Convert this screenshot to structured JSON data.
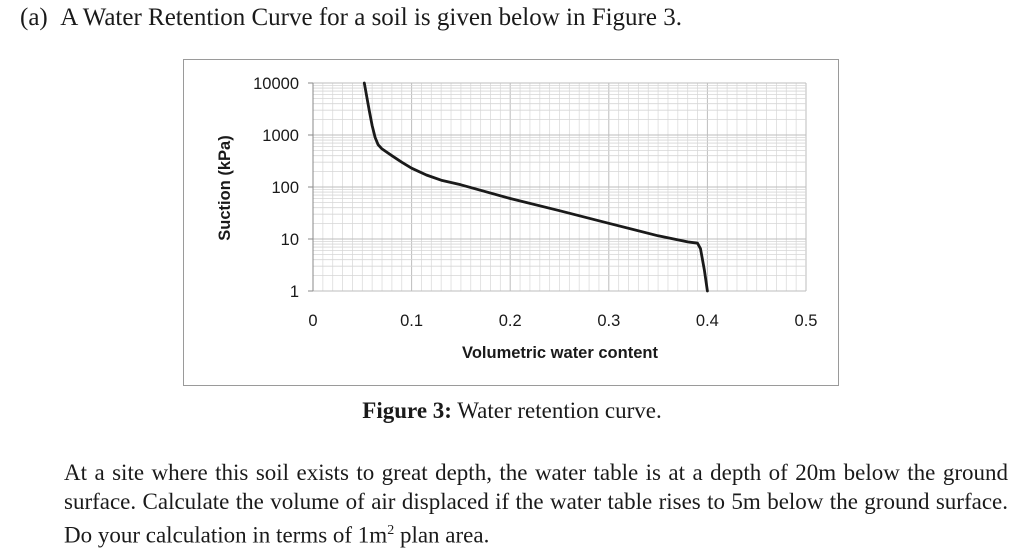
{
  "question": {
    "label": "(a)",
    "heading": "A Water Retention Curve for a soil is given below in Figure 3.",
    "body_before_sup": "At a site where this soil exists to great depth, the water table is at a depth of 20m below the ground surface. Calculate the volume of air displaced if the water table rises to 5m below the ground surface. Do your calculation in terms of 1m",
    "body_sup": "2",
    "body_after_sup": " plan area."
  },
  "figure": {
    "caption_label": "Figure 3:",
    "caption_text": " Water retention curve."
  },
  "chart_data": {
    "type": "line",
    "title": "",
    "xlabel": "Volumetric water content",
    "ylabel": "Suction (kPa)",
    "xlim": [
      0,
      0.5
    ],
    "ylim": [
      1,
      10000
    ],
    "yscale": "log",
    "grid": true,
    "legend": "none",
    "line_color": "#1a1a1a",
    "x_ticks": [
      "0",
      "0.1",
      "0.2",
      "0.3",
      "0.4",
      "0.5"
    ],
    "y_ticks": [
      "1",
      "10",
      "100",
      "1000",
      "10000"
    ],
    "series": [
      {
        "x": [
          0.052,
          0.057,
          0.06,
          0.063,
          0.066,
          0.07,
          0.08,
          0.09,
          0.1,
          0.115,
          0.13,
          0.15,
          0.2,
          0.25,
          0.3,
          0.35,
          0.38,
          0.39,
          0.393,
          0.397,
          0.4
        ],
        "y": [
          10000,
          3000,
          1500,
          900,
          650,
          540,
          400,
          300,
          230,
          170,
          135,
          110,
          60,
          35,
          20,
          11.5,
          8.8,
          8.3,
          6.5,
          2.5,
          1
        ]
      }
    ]
  }
}
